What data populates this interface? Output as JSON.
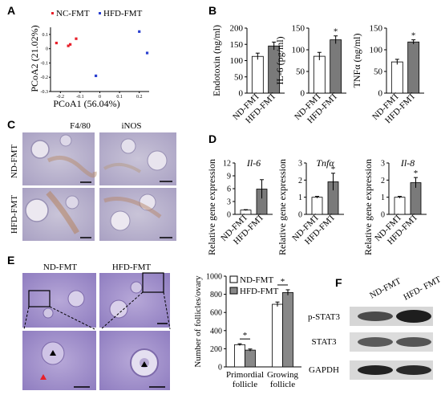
{
  "panels": {
    "A": {
      "label": "A",
      "legend": [
        {
          "name": "NC-FMT",
          "color": "#e8202a"
        },
        {
          "name": "HFD-FMT",
          "color": "#2a3fd0"
        }
      ],
      "xlabel": "PCoA1 (56.04%)",
      "ylabel": "PCoA2 (21.02%)",
      "xticks": [
        "-0.2",
        "-0.1",
        "0",
        "0.1",
        "0.2"
      ],
      "yticks": [
        "0.1",
        "0",
        "-0.1",
        "-0.2",
        "-0.3"
      ]
    },
    "B": {
      "label": "B",
      "categories": [
        "ND-FMT",
        "HFD-FMT"
      ],
      "star": "*"
    },
    "C": {
      "label": "C",
      "col_titles": [
        "F4/80",
        "iNOS"
      ],
      "row_labels": [
        "ND-FMT",
        "HFD-FMT"
      ]
    },
    "D": {
      "label": "D",
      "ylabel": "Relative gene expression",
      "categories": [
        "ND-FMT",
        "HFD-FMT"
      ],
      "star": "*"
    },
    "E": {
      "label": "E",
      "image_titles": [
        "ND-FMT",
        "HFD-FMT"
      ],
      "legend": [
        "ND-FMT",
        "HFD-FMT"
      ],
      "star": "*"
    },
    "F": {
      "label": "F",
      "lanes": [
        "ND-FMT",
        "HFD- FMT"
      ],
      "bands": [
        "p-STAT3",
        "STAT3",
        "GAPDH"
      ]
    }
  },
  "chart_data": [
    {
      "id": "A-pcoa",
      "type": "scatter",
      "xlabel": "PCoA1 (56.04%)",
      "ylabel": "PCoA2 (21.02%)",
      "xlim": [
        -0.25,
        0.25
      ],
      "ylim": [
        -0.3,
        0.15
      ],
      "series": [
        {
          "name": "NC-FMT",
          "color": "#e8202a",
          "points": [
            [
              -0.22,
              0.04
            ],
            [
              -0.16,
              0.02
            ],
            [
              -0.15,
              0.03
            ],
            [
              -0.12,
              0.07
            ]
          ]
        },
        {
          "name": "HFD-FMT",
          "color": "#2a3fd0",
          "points": [
            [
              -0.02,
              -0.19
            ],
            [
              0.2,
              0.12
            ],
            [
              0.24,
              -0.03
            ]
          ]
        }
      ]
    },
    {
      "id": "B-endotoxin",
      "type": "bar",
      "ylabel": "Endotoxin (ng/ml)",
      "categories": [
        "ND-FMT",
        "HFD-FMT"
      ],
      "values": [
        113,
        145
      ],
      "errors": [
        10,
        12
      ],
      "ylim": [
        0,
        200
      ],
      "yticks": [
        "0",
        "50",
        "100",
        "150",
        "200"
      ],
      "significant": [
        false,
        false
      ]
    },
    {
      "id": "B-il6",
      "type": "bar",
      "ylabel": "IL-6 (pg/ml)",
      "categories": [
        "ND-FMT",
        "HFD-FMT"
      ],
      "values": [
        85,
        123
      ],
      "errors": [
        9,
        9
      ],
      "ylim": [
        0,
        150
      ],
      "yticks": [
        "0",
        "50",
        "100",
        "150"
      ],
      "significant": [
        false,
        true
      ]
    },
    {
      "id": "B-tnfa",
      "type": "bar",
      "ylabel": "TNFα (ng/ml)",
      "categories": [
        "ND-FMT",
        "HFD-FMT"
      ],
      "values": [
        72,
        118
      ],
      "errors": [
        6,
        5
      ],
      "ylim": [
        0,
        150
      ],
      "yticks": [
        "0",
        "50",
        "100",
        "150"
      ],
      "significant": [
        false,
        true
      ]
    },
    {
      "id": "D-il6",
      "type": "bar",
      "title": "Il-6",
      "categories": [
        "ND-FMT",
        "HFD-FMT"
      ],
      "values": [
        1,
        5.9
      ],
      "errors": [
        0.1,
        2.2
      ],
      "ylim": [
        0,
        12
      ],
      "yticks": [
        "0",
        "3",
        "6",
        "9",
        "12"
      ],
      "significant": [
        false,
        false
      ]
    },
    {
      "id": "D-tnfa",
      "type": "bar",
      "title": "Tnfα",
      "categories": [
        "ND-FMT",
        "HFD-FMT"
      ],
      "values": [
        1,
        1.9
      ],
      "errors": [
        0.05,
        0.5
      ],
      "ylim": [
        0,
        3
      ],
      "yticks": [
        "0",
        "1",
        "2",
        "3"
      ],
      "significant": [
        false,
        true
      ]
    },
    {
      "id": "D-il8",
      "type": "bar",
      "title": "Il-8",
      "categories": [
        "ND-FMT",
        "HFD-FMT"
      ],
      "values": [
        1,
        1.85
      ],
      "errors": [
        0.05,
        0.3
      ],
      "ylim": [
        0,
        3
      ],
      "yticks": [
        "0",
        "1",
        "2",
        "3"
      ],
      "significant": [
        false,
        true
      ]
    },
    {
      "id": "E-follicles",
      "type": "bar",
      "ylabel": "Number of follicles/ovary",
      "categories": [
        "Primordial follicle",
        "Growing follicle"
      ],
      "series": [
        {
          "name": "ND-FMT",
          "values": [
            245,
            690
          ],
          "errors": [
            10,
            25
          ]
        },
        {
          "name": "HFD-FMT",
          "values": [
            185,
            820
          ],
          "errors": [
            12,
            30
          ]
        }
      ],
      "ylim": [
        0,
        1000
      ],
      "yticks": [
        "0",
        "200",
        "400",
        "600",
        "800",
        "1000"
      ],
      "significant": [
        true,
        true
      ]
    }
  ]
}
